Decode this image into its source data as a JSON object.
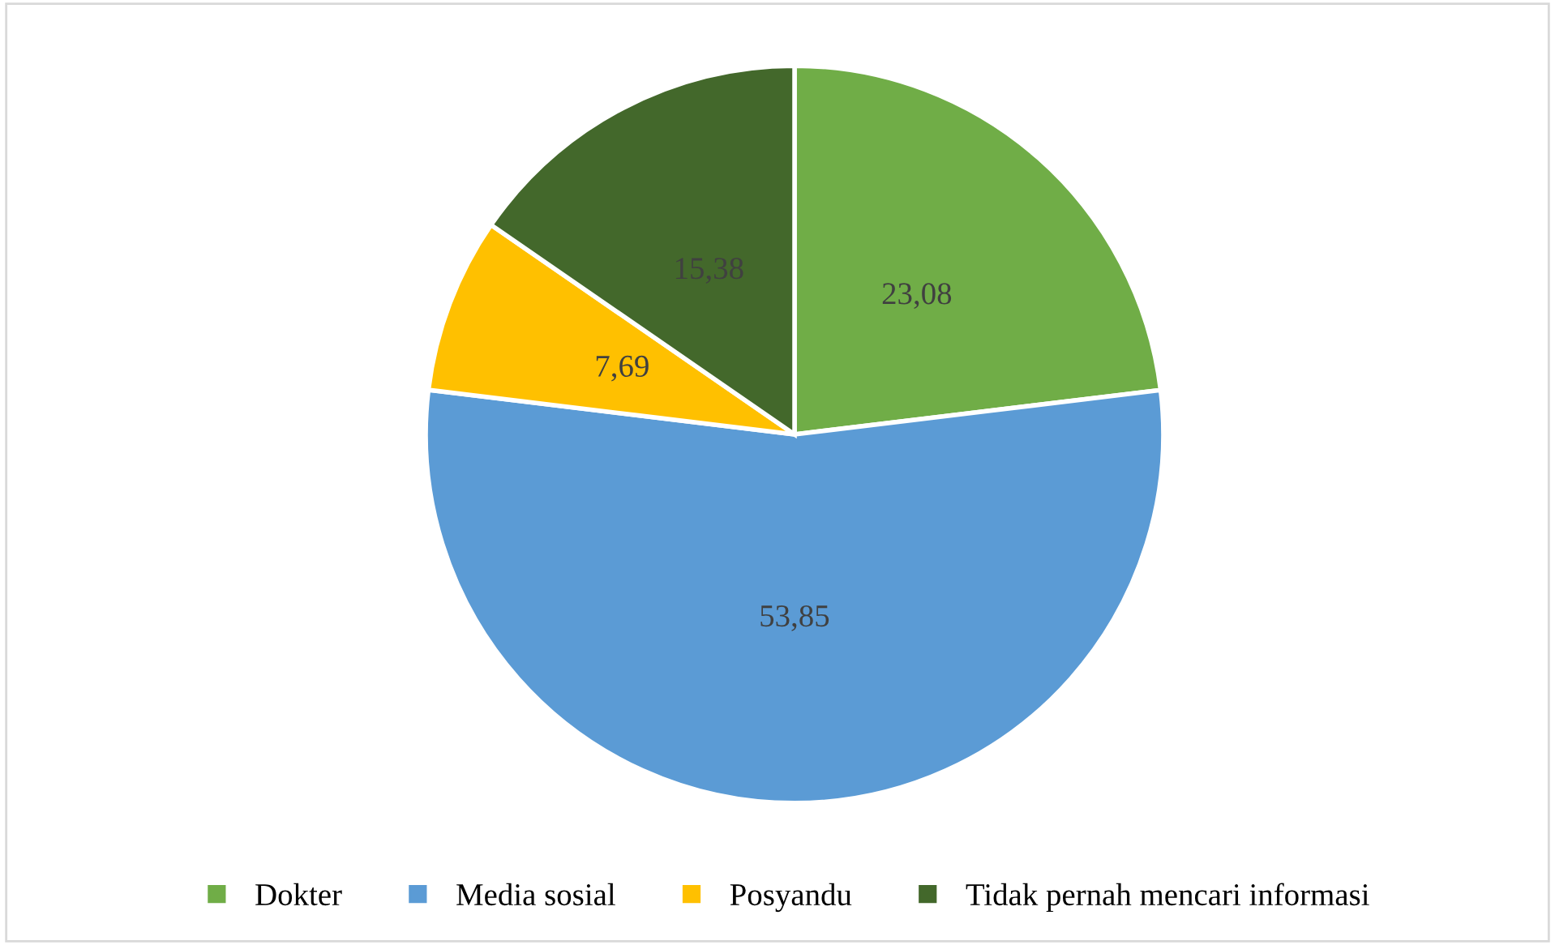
{
  "chart_data": {
    "type": "pie",
    "categories": [
      "Dokter",
      "Media sosial",
      "Posyandu",
      "Tidak pernah mencari informasi"
    ],
    "values": [
      23.08,
      53.85,
      7.69,
      15.38
    ],
    "colors": [
      "#70ad47",
      "#5b9bd5",
      "#ffc000",
      "#43682b"
    ],
    "value_labels": [
      "23,08",
      "53,85",
      "7,69",
      "15,38"
    ],
    "legend": "bottom"
  }
}
